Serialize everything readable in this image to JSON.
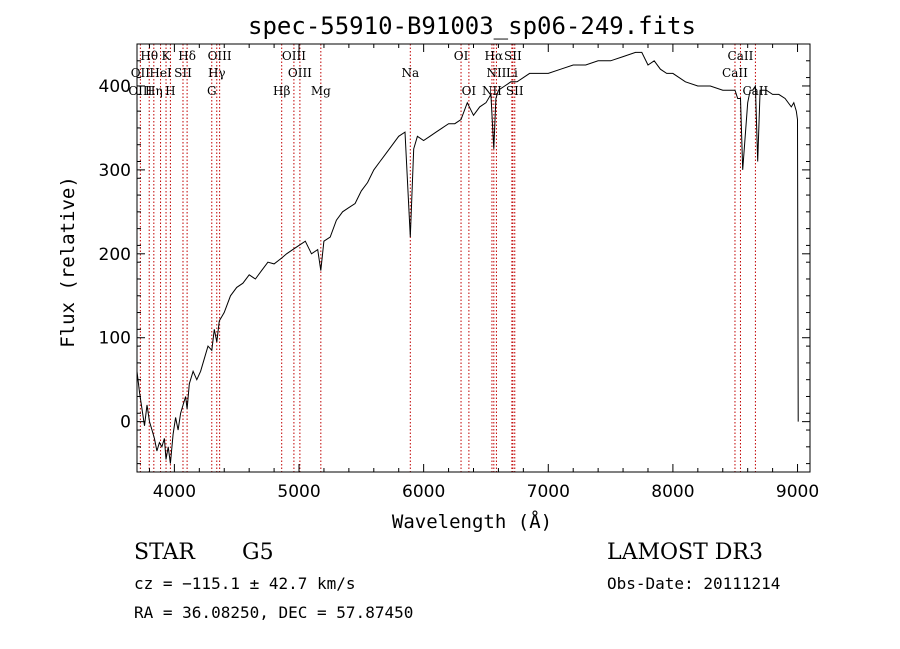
{
  "chart_data": {
    "type": "line",
    "title": "spec-55910-B91003_sp06-249.fits",
    "xlabel": "Wavelength (Å)",
    "ylabel": "Flux (relative)",
    "xlim": [
      3700,
      9100
    ],
    "ylim": [
      -60,
      450
    ],
    "xticks": [
      4000,
      5000,
      6000,
      7000,
      8000,
      9000
    ],
    "yticks": [
      0,
      100,
      200,
      300,
      400
    ],
    "xtick_labels": [
      "4000",
      "5000",
      "6000",
      "7000",
      "8000",
      "9000"
    ],
    "ytick_labels": [
      "0",
      "100",
      "200",
      "300",
      "400"
    ],
    "grid": false,
    "series": [
      {
        "name": "spectrum",
        "x": [
          3700,
          3720,
          3740,
          3760,
          3780,
          3800,
          3820,
          3840,
          3860,
          3880,
          3900,
          3920,
          3933,
          3950,
          3968,
          3990,
          4010,
          4030,
          4050,
          4070,
          4090,
          4102,
          4120,
          4150,
          4180,
          4210,
          4240,
          4270,
          4300,
          4320,
          4340,
          4360,
          4400,
          4450,
          4500,
          4550,
          4600,
          4650,
          4700,
          4750,
          4800,
          4861,
          4900,
          4950,
          5000,
          5050,
          5100,
          5150,
          5175,
          5200,
          5250,
          5300,
          5350,
          5400,
          5450,
          5500,
          5550,
          5600,
          5650,
          5700,
          5750,
          5800,
          5850,
          5893,
          5920,
          5950,
          6000,
          6050,
          6100,
          6150,
          6200,
          6250,
          6300,
          6350,
          6400,
          6450,
          6500,
          6540,
          6563,
          6580,
          6600,
          6650,
          6700,
          6750,
          6800,
          6850,
          6900,
          6950,
          7000,
          7100,
          7200,
          7300,
          7400,
          7500,
          7600,
          7700,
          7750,
          7800,
          7850,
          7900,
          7950,
          8000,
          8050,
          8100,
          8200,
          8300,
          8400,
          8498,
          8520,
          8542,
          8560,
          8600,
          8620,
          8640,
          8662,
          8680,
          8700,
          8750,
          8800,
          8850,
          8900,
          8950,
          8970,
          8990,
          9000,
          9005
        ],
        "values": [
          60,
          35,
          15,
          -5,
          20,
          0,
          -10,
          -20,
          -35,
          -25,
          -30,
          -20,
          -45,
          -30,
          -50,
          -15,
          5,
          -10,
          10,
          20,
          30,
          15,
          45,
          60,
          50,
          60,
          75,
          90,
          85,
          110,
          95,
          120,
          130,
          150,
          160,
          165,
          175,
          170,
          180,
          190,
          188,
          195,
          200,
          205,
          210,
          215,
          200,
          205,
          180,
          215,
          220,
          240,
          250,
          255,
          260,
          275,
          285,
          300,
          310,
          320,
          330,
          340,
          345,
          220,
          325,
          340,
          335,
          340,
          345,
          350,
          355,
          355,
          360,
          380,
          365,
          375,
          380,
          390,
          325,
          385,
          395,
          400,
          405,
          405,
          410,
          415,
          415,
          415,
          415,
          420,
          425,
          425,
          430,
          430,
          435,
          440,
          440,
          425,
          430,
          420,
          415,
          415,
          410,
          405,
          400,
          400,
          395,
          395,
          385,
          385,
          300,
          380,
          395,
          395,
          400,
          310,
          395,
          395,
          390,
          390,
          385,
          375,
          380,
          370,
          360,
          0
        ]
      }
    ],
    "line_labels_row1": [
      {
        "label": "Hθ",
        "x": 3798
      },
      {
        "label": "K",
        "x": 3933
      },
      {
        "label": "Hδ",
        "x": 4102
      },
      {
        "label": "OIII",
        "x": 4363
      },
      {
        "label": "OIII",
        "x": 4959
      },
      {
        "label": "OI",
        "x": 6300
      },
      {
        "label": "Hα",
        "x": 6563
      },
      {
        "label": "SII",
        "x": 6716
      },
      {
        "label": "CaII",
        "x": 8542
      }
    ],
    "line_labels_row2": [
      {
        "label": "OII",
        "x": 3727
      },
      {
        "label": "HeI",
        "x": 3889
      },
      {
        "label": "SII",
        "x": 4069
      },
      {
        "label": "Hγ",
        "x": 4340
      },
      {
        "label": "OIII",
        "x": 5007
      },
      {
        "label": "Na",
        "x": 5893
      },
      {
        "label": "NII",
        "x": 6584
      },
      {
        "label": "Li",
        "x": 6708
      },
      {
        "label": "CaII",
        "x": 8498
      }
    ],
    "line_labels_row3": [
      {
        "label": "OIII",
        "x": 3727
      },
      {
        "label": "Hη",
        "x": 3835
      },
      {
        "label": "H",
        "x": 3968
      },
      {
        "label": "G",
        "x": 4300
      },
      {
        "label": "Hβ",
        "x": 4861
      },
      {
        "label": "Mg",
        "x": 5175
      },
      {
        "label": "OI",
        "x": 6363
      },
      {
        "label": "NII",
        "x": 6548
      },
      {
        "label": "SII",
        "x": 6731
      },
      {
        "label": "CaII",
        "x": 8662
      }
    ],
    "line_positions": [
      3727,
      3798,
      3835,
      3889,
      3933,
      3968,
      4069,
      4102,
      4300,
      4340,
      4363,
      4861,
      4959,
      5007,
      5175,
      5893,
      6300,
      6363,
      6548,
      6563,
      6584,
      6708,
      6716,
      6731,
      8498,
      8542,
      8662
    ]
  },
  "info": {
    "class_label": "STAR",
    "subclass": "G5",
    "survey": "LAMOST DR3",
    "cz": "cz = −115.1 ± 42.7 km/s",
    "obs_date": "Obs-Date: 20111214",
    "radec": "RA =  36.08250, DEC =  57.87450"
  }
}
